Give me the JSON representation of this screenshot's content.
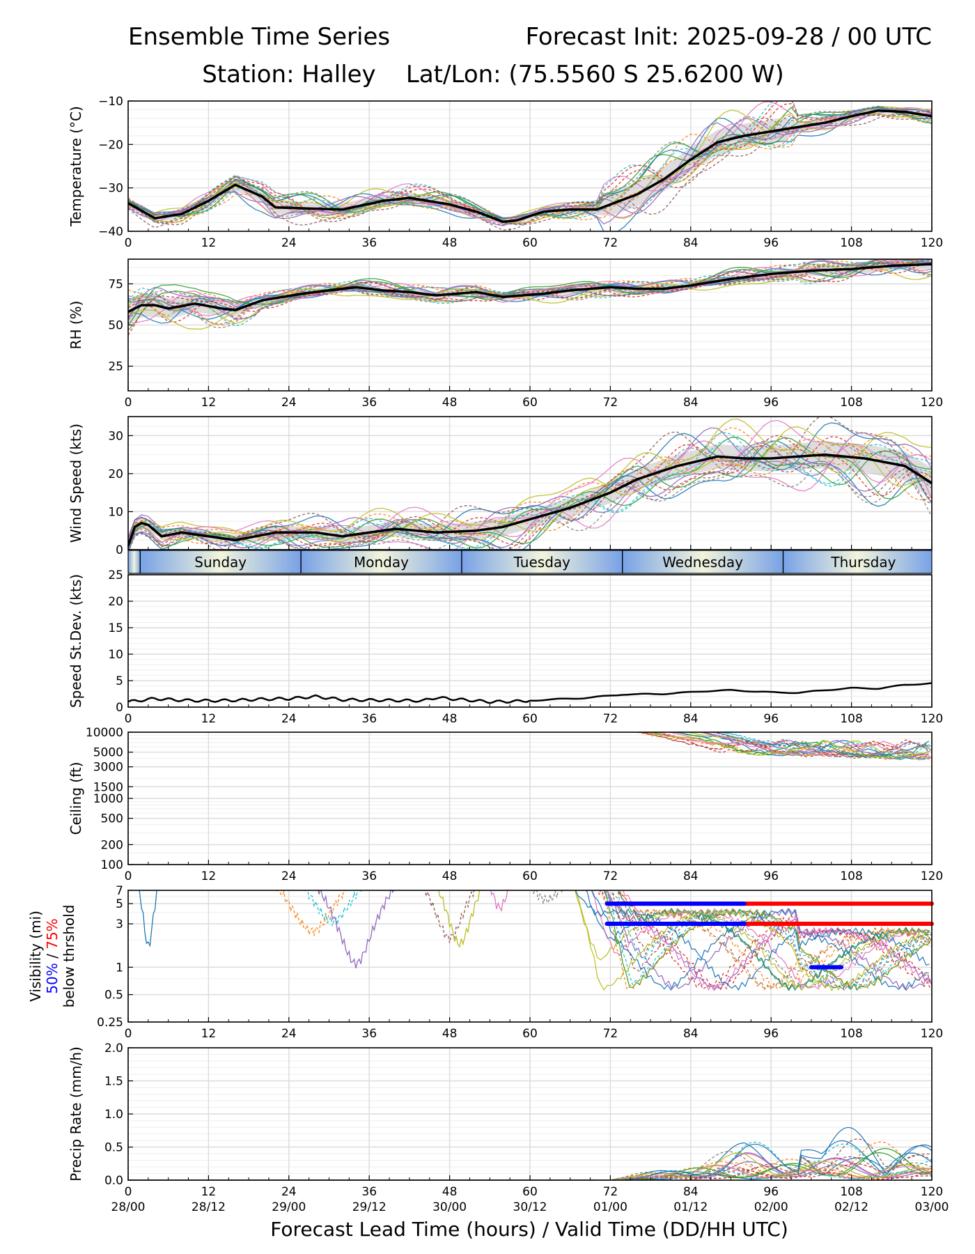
{
  "header": {
    "left_title": "Ensemble Time Series",
    "right_title": "Forecast Init: 2025-09-28 / 00 UTC",
    "station_line": "Station: Halley    Lat/Lon: (75.5560 S 25.6200 W)"
  },
  "colors": {
    "mean": "#000000",
    "spread": "#c8c8c8",
    "grid": "#dcdcdc",
    "vis_50": "#0000ff",
    "vis_75": "#ff0000",
    "members": [
      "#1f77b4",
      "#ff7f0e",
      "#2ca02c",
      "#d62728",
      "#9467bd",
      "#8c564b",
      "#e377c2",
      "#7f7f7f",
      "#bcbd22",
      "#17becf"
    ]
  },
  "chart_data": {
    "type": "line",
    "title": "Ensemble Time Series",
    "xlabel": "Forecast Lead Time (hours) / Valid Time (DD/HH UTC)",
    "x_range": [
      0,
      120
    ],
    "x_ticks": [
      "0",
      "12",
      "24",
      "36",
      "48",
      "60",
      "72",
      "84",
      "96",
      "108",
      "120"
    ],
    "valid_time_ticks": [
      "28/00",
      "28/12",
      "29/00",
      "29/12",
      "30/00",
      "30/12",
      "01/00",
      "01/12",
      "02/00",
      "02/12",
      "03/00"
    ],
    "day_band": {
      "days": [
        "Sunday",
        "Monday",
        "Tuesday",
        "Wednesday",
        "Thursday"
      ],
      "boundaries_h": [
        1.8,
        25.8,
        49.8,
        73.8,
        97.8
      ]
    },
    "panels": [
      {
        "id": "temperature",
        "ylabel": "Temperature (°C)",
        "ylim": [
          -40,
          -10
        ],
        "y_ticks": [
          "−10",
          "−20",
          "−30",
          "−40"
        ],
        "mean": [
          [
            0,
            -33.5
          ],
          [
            4,
            -37
          ],
          [
            8,
            -36
          ],
          [
            12,
            -33
          ],
          [
            16,
            -29.3
          ],
          [
            20,
            -32
          ],
          [
            22,
            -34.5
          ],
          [
            28,
            -34.8
          ],
          [
            32,
            -35
          ],
          [
            38,
            -33
          ],
          [
            42,
            -32.3
          ],
          [
            48,
            -33.8
          ],
          [
            52,
            -35.5
          ],
          [
            56,
            -37.8
          ],
          [
            58,
            -37.5
          ],
          [
            62,
            -35.5
          ],
          [
            66,
            -35
          ],
          [
            70,
            -35
          ],
          [
            76,
            -31.5
          ],
          [
            80,
            -28
          ],
          [
            84,
            -23.5
          ],
          [
            88,
            -19.5
          ],
          [
            92,
            -18
          ],
          [
            96,
            -17
          ],
          [
            100,
            -16
          ],
          [
            104,
            -15
          ],
          [
            108,
            -13.5
          ],
          [
            112,
            -12.2
          ],
          [
            116,
            -12.5
          ],
          [
            120,
            -13.5
          ]
        ]
      },
      {
        "id": "rh",
        "ylabel": "RH (%)",
        "ylim": [
          10,
          90
        ],
        "y_ticks": [
          "75",
          "50",
          "25"
        ],
        "mean": [
          [
            0,
            58
          ],
          [
            2,
            62
          ],
          [
            4,
            62
          ],
          [
            6,
            60
          ],
          [
            10,
            63
          ],
          [
            14,
            60
          ],
          [
            16,
            59
          ],
          [
            20,
            65
          ],
          [
            26,
            69
          ],
          [
            30,
            71
          ],
          [
            34,
            73
          ],
          [
            38,
            71
          ],
          [
            42,
            70
          ],
          [
            46,
            68
          ],
          [
            52,
            70
          ],
          [
            56,
            67
          ],
          [
            62,
            69
          ],
          [
            66,
            71
          ],
          [
            72,
            73
          ],
          [
            76,
            72
          ],
          [
            80,
            72
          ],
          [
            84,
            74
          ],
          [
            90,
            78
          ],
          [
            96,
            81
          ],
          [
            102,
            83
          ],
          [
            108,
            84
          ],
          [
            114,
            86
          ],
          [
            120,
            87
          ]
        ]
      },
      {
        "id": "wind_speed",
        "ylabel": "Wind Speed (kts)",
        "ylim": [
          0,
          35
        ],
        "y_ticks": [
          "30",
          "20",
          "10",
          "0"
        ],
        "mean": [
          [
            0,
            1
          ],
          [
            1,
            6
          ],
          [
            2,
            7
          ],
          [
            3,
            6.5
          ],
          [
            5,
            3.5
          ],
          [
            8,
            4.5
          ],
          [
            12,
            3.5
          ],
          [
            16,
            2.5
          ],
          [
            22,
            4.5
          ],
          [
            28,
            4.5
          ],
          [
            32,
            3.5
          ],
          [
            36,
            4.5
          ],
          [
            40,
            5.5
          ],
          [
            46,
            4.5
          ],
          [
            52,
            5
          ],
          [
            56,
            6
          ],
          [
            60,
            8
          ],
          [
            66,
            11
          ],
          [
            72,
            15
          ],
          [
            76,
            18.5
          ],
          [
            82,
            22
          ],
          [
            88,
            24.5
          ],
          [
            92,
            24
          ],
          [
            96,
            24
          ],
          [
            104,
            25
          ],
          [
            110,
            24
          ],
          [
            116,
            22
          ],
          [
            120,
            17.5
          ]
        ]
      },
      {
        "id": "speed_stdev",
        "ylabel": "Speed St.Dev. (kts)",
        "ylim": [
          0,
          25
        ],
        "y_ticks": [
          "25",
          "20",
          "15",
          "10",
          "5",
          "0"
        ],
        "mean": [
          [
            0,
            1
          ],
          [
            2,
            1.3
          ],
          [
            4,
            1.6
          ],
          [
            8,
            1.3
          ],
          [
            12,
            1.2
          ],
          [
            16,
            1.3
          ],
          [
            20,
            1.5
          ],
          [
            24,
            1.6
          ],
          [
            28,
            2
          ],
          [
            32,
            1.4
          ],
          [
            38,
            1.3
          ],
          [
            44,
            1.2
          ],
          [
            46,
            1.8
          ],
          [
            50,
            1.4
          ],
          [
            54,
            1
          ],
          [
            58,
            1.1
          ],
          [
            64,
            1.5
          ],
          [
            68,
            1.7
          ],
          [
            74,
            2.4
          ],
          [
            80,
            2.5
          ],
          [
            86,
            3
          ],
          [
            90,
            3.2
          ],
          [
            96,
            2.8
          ],
          [
            100,
            2.7
          ],
          [
            104,
            3.2
          ],
          [
            108,
            3.6
          ],
          [
            112,
            3.5
          ],
          [
            116,
            4.2
          ],
          [
            120,
            4.5
          ]
        ]
      },
      {
        "id": "ceiling",
        "ylabel": "Ceiling (ft)",
        "ylim": [
          100,
          10000
        ],
        "y_ticks": [
          "10000",
          "5000",
          "3000",
          "1500",
          "1000",
          "500",
          "200",
          "100"
        ],
        "member_window_h": [
          75,
          120
        ]
      },
      {
        "id": "visibility",
        "ylabel_lines": [
          "Visibility (mi)",
          "50%",
          " / ",
          "75%",
          "below thrshold"
        ],
        "ylim": [
          0.25,
          7
        ],
        "y_ticks": [
          "7",
          "5",
          "3",
          "1",
          "0.5",
          "0.25"
        ],
        "threshold_bars": [
          {
            "pct": "75%",
            "y": 5,
            "from_h": 71.5,
            "to_h": 120
          },
          {
            "pct": "75%",
            "y": 3,
            "from_h": 71.5,
            "to_h": 120
          },
          {
            "pct": "50%",
            "y": 5,
            "from_h": 71.5,
            "to_h": 92
          },
          {
            "pct": "50%",
            "y": 3,
            "from_h": 71.5,
            "to_h": 92
          },
          {
            "pct": "50%",
            "y": 1,
            "from_h": 102,
            "to_h": 106.5
          }
        ]
      },
      {
        "id": "precip_rate",
        "ylabel": "Precip Rate (mm/h)",
        "ylim": [
          0,
          2
        ],
        "y_ticks": [
          "2.0",
          "1.5",
          "1.0",
          "0.5",
          "0.0"
        ],
        "member_window_h": [
          70,
          120
        ]
      }
    ]
  }
}
